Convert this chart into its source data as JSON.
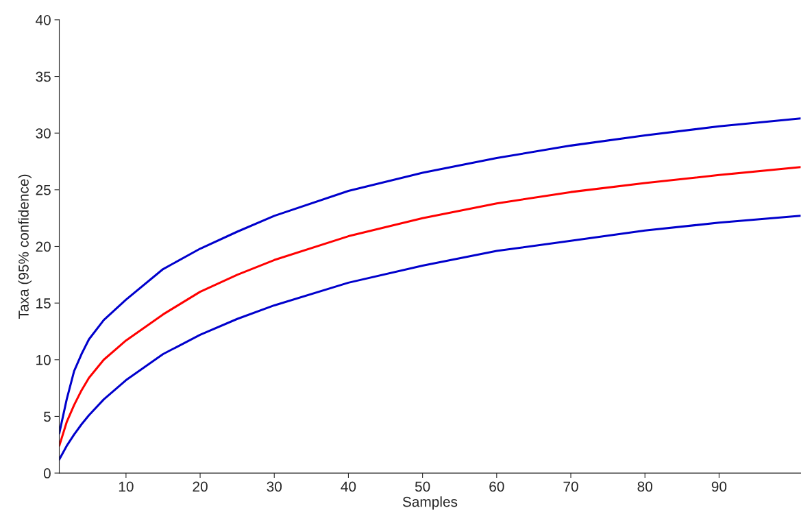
{
  "chart_data": {
    "type": "line",
    "xlabel": "Samples",
    "ylabel": "Taxa (95% confidence)",
    "xlim": [
      1,
      101
    ],
    "ylim": [
      0,
      40
    ],
    "xticks": [
      10,
      20,
      30,
      40,
      50,
      60,
      70,
      80,
      90
    ],
    "yticks": [
      0,
      5,
      10,
      15,
      20,
      25,
      30,
      35,
      40
    ],
    "grid": false,
    "x": [
      1,
      2,
      3,
      4,
      5,
      7,
      10,
      15,
      20,
      25,
      30,
      40,
      50,
      60,
      70,
      80,
      90,
      101
    ],
    "series": [
      {
        "color": "#0000cc",
        "values": [
          3.5,
          6.5,
          9,
          10.5,
          11.8,
          13.5,
          15.3,
          18,
          19.8,
          21.3,
          22.7,
          24.9,
          26.5,
          27.8,
          28.9,
          29.8,
          30.6,
          31.3
        ]
      },
      {
        "color": "#ff0000",
        "values": [
          2.4,
          4.5,
          6,
          7.3,
          8.4,
          10,
          11.7,
          14,
          16,
          17.5,
          18.8,
          20.9,
          22.5,
          23.8,
          24.8,
          25.6,
          26.3,
          27
        ]
      },
      {
        "color": "#0000cc",
        "values": [
          1.2,
          2.4,
          3.4,
          4.3,
          5.1,
          6.5,
          8.2,
          10.5,
          12.2,
          13.6,
          14.8,
          16.8,
          18.3,
          19.6,
          20.5,
          21.4,
          22.1,
          22.7
        ]
      }
    ]
  }
}
